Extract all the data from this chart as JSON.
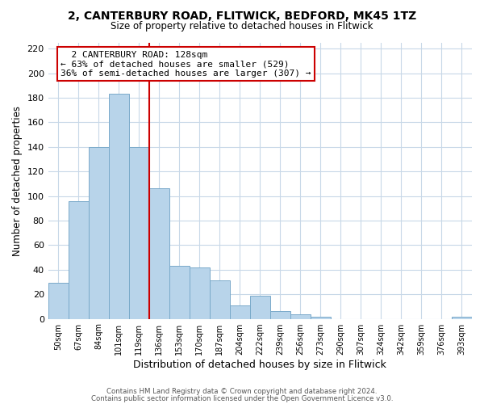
{
  "title_line1": "2, CANTERBURY ROAD, FLITWICK, BEDFORD, MK45 1TZ",
  "title_line2": "Size of property relative to detached houses in Flitwick",
  "xlabel": "Distribution of detached houses by size in Flitwick",
  "ylabel": "Number of detached properties",
  "bar_labels": [
    "50sqm",
    "67sqm",
    "84sqm",
    "101sqm",
    "119sqm",
    "136sqm",
    "153sqm",
    "170sqm",
    "187sqm",
    "204sqm",
    "222sqm",
    "239sqm",
    "256sqm",
    "273sqm",
    "290sqm",
    "307sqm",
    "324sqm",
    "342sqm",
    "359sqm",
    "376sqm",
    "393sqm"
  ],
  "bar_values": [
    29,
    96,
    140,
    183,
    140,
    106,
    43,
    42,
    31,
    11,
    19,
    6,
    4,
    2,
    0,
    0,
    0,
    0,
    0,
    0,
    2
  ],
  "bar_color": "#b8d4ea",
  "bar_edge_color": "#7aaaca",
  "vline_x": 4.5,
  "vline_color": "#cc0000",
  "annotation_title": "2 CANTERBURY ROAD: 128sqm",
  "annotation_line1": "← 63% of detached houses are smaller (529)",
  "annotation_line2": "36% of semi-detached houses are larger (307) →",
  "annotation_box_color": "#ffffff",
  "annotation_box_edge": "#cc0000",
  "ylim": [
    0,
    225
  ],
  "yticks": [
    0,
    20,
    40,
    60,
    80,
    100,
    120,
    140,
    160,
    180,
    200,
    220
  ],
  "footer_line1": "Contains HM Land Registry data © Crown copyright and database right 2024.",
  "footer_line2": "Contains public sector information licensed under the Open Government Licence v3.0.",
  "bg_color": "#ffffff",
  "grid_color": "#c8d8e8"
}
